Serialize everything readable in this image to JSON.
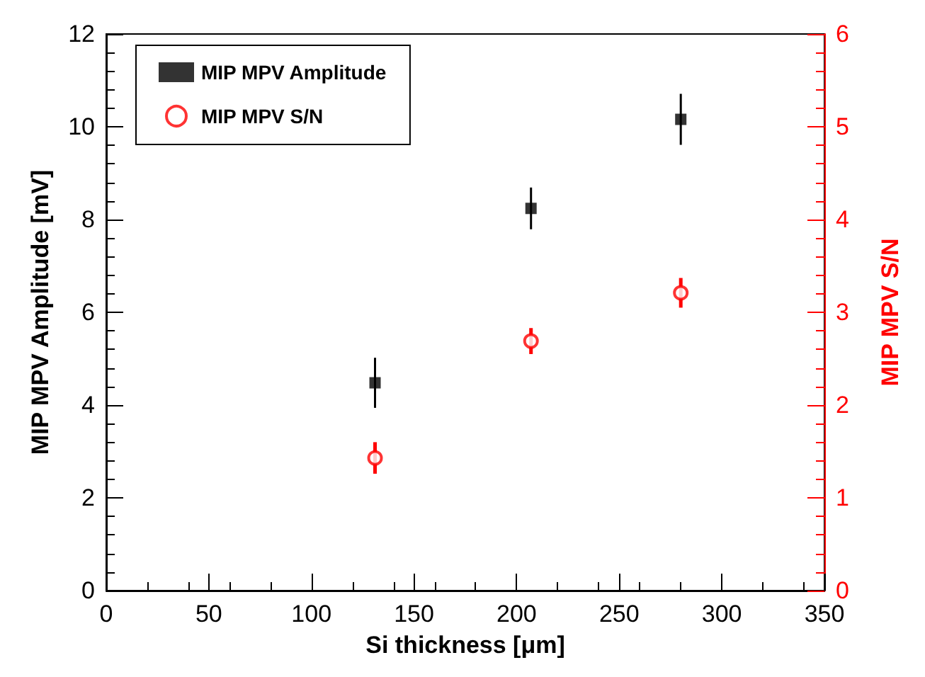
{
  "chart_data": {
    "type": "scatter",
    "xlabel": "Si thickness [μm]",
    "ylabel": "MIP MPV Amplitude [mV]",
    "y2label": "MIP MPV S/N",
    "x": [
      131,
      207,
      280
    ],
    "series": [
      {
        "name": "MIP MPV Amplitude",
        "color": "#000000",
        "marker": "square",
        "values": [
          4.48,
          8.24,
          10.16
        ],
        "errors": [
          0.54,
          0.45,
          0.55
        ]
      },
      {
        "name": "MIP MPV S/N",
        "color": "#ff0000",
        "marker": "circle",
        "axis": "y2",
        "values": [
          1.43,
          2.69,
          3.21
        ],
        "errors": [
          0.17,
          0.14,
          0.16
        ]
      }
    ],
    "xlim": [
      0,
      350
    ],
    "xticks": [
      0,
      50,
      100,
      150,
      200,
      250,
      300,
      350
    ],
    "ylim": [
      0,
      12
    ],
    "yticks": [
      0,
      2,
      4,
      6,
      8,
      10,
      12
    ],
    "y2lim": [
      0,
      6
    ],
    "y2ticks": [
      0,
      1,
      2,
      3,
      4,
      5,
      6
    ],
    "legend": "top left",
    "grid": false
  }
}
